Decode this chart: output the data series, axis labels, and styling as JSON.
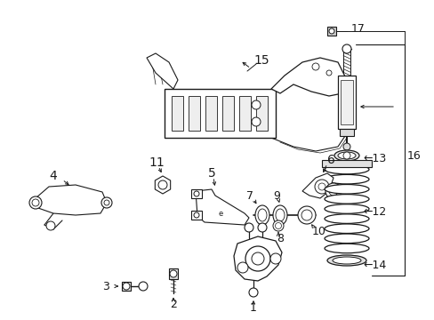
{
  "bg_color": "#ffffff",
  "line_color": "#1a1a1a",
  "fig_width": 4.89,
  "fig_height": 3.6,
  "dpi": 100,
  "label_fontsize": 9,
  "callout_color": "#1a1a1a"
}
